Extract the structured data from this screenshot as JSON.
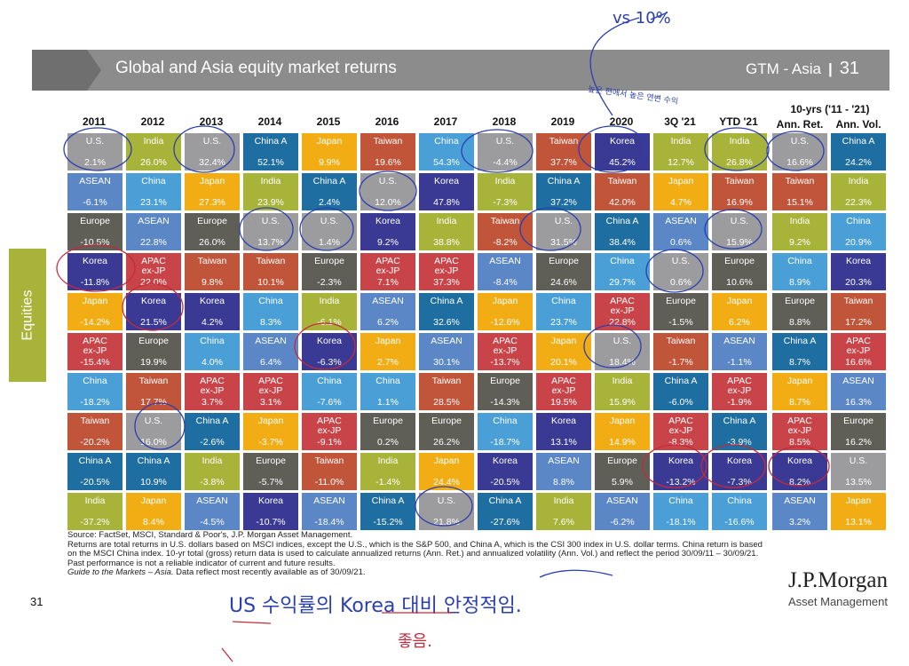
{
  "header": {
    "title": "Global and Asia equity market returns",
    "section": "GTM - Asia",
    "separator": "|",
    "page": "31"
  },
  "side_label": "Equities",
  "years": [
    "2011",
    "2012",
    "2013",
    "2014",
    "2015",
    "2016",
    "2017",
    "2018",
    "2019",
    "2020",
    "3Q '21",
    "YTD '21"
  ],
  "long_term": {
    "title": "10-yrs ('11 - '21)",
    "col1": "Ann. Ret.",
    "col2": "Ann. Vol."
  },
  "colors": {
    "U.S.": "#9c9c9e",
    "India": "#a8b33a",
    "China A": "#1e6ea1",
    "Japan": "#f2ad14",
    "Taiwan": "#c0553a",
    "China": "#4a9fd6",
    "ASEAN": "#5b87c7",
    "Europe": "#5f5f58",
    "Korea": "#3a3a95",
    "APAC ex-JP": "#c94448"
  },
  "columns": [
    [
      [
        "U.S.",
        "2.1%"
      ],
      [
        "ASEAN",
        "-6.1%"
      ],
      [
        "Europe",
        "-10.5%"
      ],
      [
        "Korea",
        "-11.8%"
      ],
      [
        "Japan",
        "-14.2%"
      ],
      [
        "APAC\nex-JP",
        "-15.4%"
      ],
      [
        "China",
        "-18.2%"
      ],
      [
        "Taiwan",
        "-20.2%"
      ],
      [
        "China A",
        "-20.5%"
      ],
      [
        "India",
        "-37.2%"
      ]
    ],
    [
      [
        "India",
        "26.0%"
      ],
      [
        "China",
        "23.1%"
      ],
      [
        "ASEAN",
        "22.8%"
      ],
      [
        "APAC\nex-JP",
        "22.0%"
      ],
      [
        "Korea",
        "21.5%"
      ],
      [
        "Europe",
        "19.9%"
      ],
      [
        "Taiwan",
        "17.7%"
      ],
      [
        "U.S.",
        "16.0%"
      ],
      [
        "China A",
        "10.9%"
      ],
      [
        "Japan",
        "8.4%"
      ]
    ],
    [
      [
        "U.S.",
        "32.4%"
      ],
      [
        "Japan",
        "27.3%"
      ],
      [
        "Europe",
        "26.0%"
      ],
      [
        "Taiwan",
        "9.8%"
      ],
      [
        "Korea",
        "4.2%"
      ],
      [
        "China",
        "4.0%"
      ],
      [
        "APAC\nex-JP",
        "3.7%"
      ],
      [
        "China A",
        "-2.6%"
      ],
      [
        "India",
        "-3.8%"
      ],
      [
        "ASEAN",
        "-4.5%"
      ]
    ],
    [
      [
        "China A",
        "52.1%"
      ],
      [
        "India",
        "23.9%"
      ],
      [
        "U.S.",
        "13.7%"
      ],
      [
        "Taiwan",
        "10.1%"
      ],
      [
        "China",
        "8.3%"
      ],
      [
        "ASEAN",
        "6.4%"
      ],
      [
        "APAC\nex-JP",
        "3.1%"
      ],
      [
        "Japan",
        "-3.7%"
      ],
      [
        "Europe",
        "-5.7%"
      ],
      [
        "Korea",
        "-10.7%"
      ]
    ],
    [
      [
        "Japan",
        "9.9%"
      ],
      [
        "China A",
        "2.4%"
      ],
      [
        "U.S.",
        "1.4%"
      ],
      [
        "Europe",
        "-2.3%"
      ],
      [
        "India",
        "-6.1%"
      ],
      [
        "Korea",
        "-6.3%"
      ],
      [
        "China",
        "-7.6%"
      ],
      [
        "APAC\nex-JP",
        "-9.1%"
      ],
      [
        "Taiwan",
        "-11.0%"
      ],
      [
        "ASEAN",
        "-18.4%"
      ]
    ],
    [
      [
        "Taiwan",
        "19.6%"
      ],
      [
        "U.S.",
        "12.0%"
      ],
      [
        "Korea",
        "9.2%"
      ],
      [
        "APAC\nex-JP",
        "7.1%"
      ],
      [
        "ASEAN",
        "6.2%"
      ],
      [
        "Japan",
        "2.7%"
      ],
      [
        "China",
        "1.1%"
      ],
      [
        "Europe",
        "0.2%"
      ],
      [
        "India",
        "-1.4%"
      ],
      [
        "China A",
        "-15.2%"
      ]
    ],
    [
      [
        "China",
        "54.3%"
      ],
      [
        "Korea",
        "47.8%"
      ],
      [
        "India",
        "38.8%"
      ],
      [
        "APAC\nex-JP",
        "37.3%"
      ],
      [
        "China A",
        "32.6%"
      ],
      [
        "ASEAN",
        "30.1%"
      ],
      [
        "Taiwan",
        "28.5%"
      ],
      [
        "Europe",
        "26.2%"
      ],
      [
        "Japan",
        "24.4%"
      ],
      [
        "U.S.",
        "21.8%"
      ]
    ],
    [
      [
        "U.S.",
        "-4.4%"
      ],
      [
        "India",
        "-7.3%"
      ],
      [
        "Taiwan",
        "-8.2%"
      ],
      [
        "ASEAN",
        "-8.4%"
      ],
      [
        "Japan",
        "-12.6%"
      ],
      [
        "APAC\nex-JP",
        "-13.7%"
      ],
      [
        "Europe",
        "-14.3%"
      ],
      [
        "China",
        "-18.7%"
      ],
      [
        "Korea",
        "-20.5%"
      ],
      [
        "China A",
        "-27.6%"
      ]
    ],
    [
      [
        "Taiwan",
        "37.7%"
      ],
      [
        "China A",
        "37.2%"
      ],
      [
        "U.S.",
        "31.5%"
      ],
      [
        "Europe",
        "24.6%"
      ],
      [
        "China",
        "23.7%"
      ],
      [
        "Japan",
        "20.1%"
      ],
      [
        "APAC\nex-JP",
        "19.5%"
      ],
      [
        "Korea",
        "13.1%"
      ],
      [
        "ASEAN",
        "8.8%"
      ],
      [
        "India",
        "7.6%"
      ]
    ],
    [
      [
        "Korea",
        "45.2%"
      ],
      [
        "Taiwan",
        "42.0%"
      ],
      [
        "China A",
        "38.4%"
      ],
      [
        "China",
        "29.7%"
      ],
      [
        "APAC\nex-JP",
        "22.8%"
      ],
      [
        "U.S.",
        "18.4%"
      ],
      [
        "India",
        "15.9%"
      ],
      [
        "Japan",
        "14.9%"
      ],
      [
        "Europe",
        "5.9%"
      ],
      [
        "ASEAN",
        "-6.2%"
      ]
    ],
    [
      [
        "India",
        "12.7%"
      ],
      [
        "Japan",
        "4.7%"
      ],
      [
        "ASEAN",
        "0.6%"
      ],
      [
        "U.S.",
        "0.6%"
      ],
      [
        "Europe",
        "-1.5%"
      ],
      [
        "Taiwan",
        "-1.7%"
      ],
      [
        "China A",
        "-6.0%"
      ],
      [
        "APAC\nex-JP",
        "-8.3%"
      ],
      [
        "Korea",
        "-13.2%"
      ],
      [
        "China",
        "-18.1%"
      ]
    ],
    [
      [
        "India",
        "26.8%"
      ],
      [
        "Taiwan",
        "16.9%"
      ],
      [
        "U.S.",
        "15.9%"
      ],
      [
        "Europe",
        "10.6%"
      ],
      [
        "Japan",
        "6.2%"
      ],
      [
        "ASEAN",
        "-1.1%"
      ],
      [
        "APAC\nex-JP",
        "-1.9%"
      ],
      [
        "China A",
        "-3.9%"
      ],
      [
        "Korea",
        "-7.3%"
      ],
      [
        "China",
        "-16.6%"
      ]
    ]
  ],
  "lt_columns": [
    [
      [
        "U.S.",
        "16.6%"
      ],
      [
        "Taiwan",
        "15.1%"
      ],
      [
        "India",
        "9.2%"
      ],
      [
        "China",
        "8.9%"
      ],
      [
        "Europe",
        "8.8%"
      ],
      [
        "China A",
        "8.7%"
      ],
      [
        "Japan",
        "8.7%"
      ],
      [
        "APAC\nex-JP",
        "8.5%"
      ],
      [
        "Korea",
        "8.2%"
      ],
      [
        "ASEAN",
        "3.2%"
      ]
    ],
    [
      [
        "China A",
        "24.2%"
      ],
      [
        "India",
        "22.3%"
      ],
      [
        "China",
        "20.9%"
      ],
      [
        "Korea",
        "20.3%"
      ],
      [
        "Taiwan",
        "17.2%"
      ],
      [
        "APAC\nex-JP",
        "16.6%"
      ],
      [
        "ASEAN",
        "16.3%"
      ],
      [
        "Europe",
        "16.2%"
      ],
      [
        "U.S.",
        "13.5%"
      ],
      [
        "Japan",
        "13.1%"
      ]
    ]
  ],
  "notes": {
    "source": "Source: FactSet, MSCI, Standard & Poor's, J.P. Morgan Asset Management.",
    "returns": "Returns are total returns in U.S. dollars based on MSCI indices, except the U.S., which is the S&P 500, and China A, which is the CSI 300 index in U.S. dollar terms. China return is based on the MSCI China index. 10-yr total (gross) return data is used to calculate annualized returns (Ann. Ret.) and annualized volatility (Ann. Vol.) and reflect the period 30/09/11 – 30/09/21. Past performance is not a reliable indicator of current and future results.",
    "guide_title": "Guide to the Markets – Asia.",
    "guide_rest": " Data reflect most recently available as of 30/09/21."
  },
  "page_number": "31",
  "brand": {
    "name": "J.P.Morgan",
    "sub": "Asset Management"
  },
  "handwriting": {
    "vs": "vs 10%",
    "mid": "높은 편에서 높은 연변 수익",
    "bottom": "US 수익률의 Korea 대비 안정적임.",
    "bottom2": "좋음."
  }
}
